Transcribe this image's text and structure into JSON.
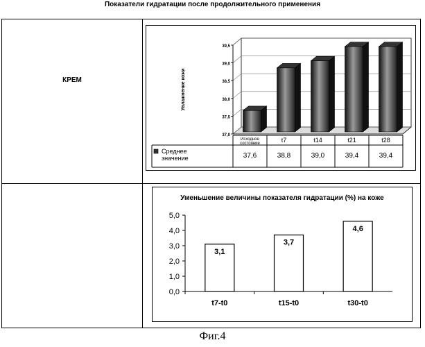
{
  "figure": {
    "title": "Показатели гидратации после продолжительного применения",
    "row_label": "КРЕМ",
    "caption": "Фиг.4"
  },
  "chart_data": [
    {
      "type": "bar",
      "ylabel": "Увлажнение кожи",
      "ylim": [
        37.0,
        39.5
      ],
      "yticks": [
        "37,0",
        "37,5",
        "38,0",
        "38,5",
        "39,0",
        "39,5"
      ],
      "categories": [
        "Исходное состояние",
        "t7",
        "t14",
        "t21",
        "t28"
      ],
      "category_lines": [
        [
          "Исходное",
          "состояние"
        ],
        [
          "t7"
        ],
        [
          "t14"
        ],
        [
          "t21"
        ],
        [
          "t28"
        ]
      ],
      "series": [
        {
          "name": "Среднее значение",
          "name_lines": [
            "Среднее",
            "значение"
          ],
          "values": [
            37.6,
            38.8,
            39.0,
            39.4,
            39.4
          ],
          "labels": [
            "37,6",
            "38,8",
            "39,0",
            "39,4",
            "39,4"
          ]
        }
      ],
      "style": "3d",
      "data_table": true,
      "grid": true
    },
    {
      "type": "bar",
      "title": "Уменьшение величины показателя гидратации (%) на коже",
      "categories": [
        "t7-t0",
        "t15-t0",
        "t30-t0"
      ],
      "values": [
        3.1,
        3.7,
        4.6
      ],
      "labels": [
        "3,1",
        "3,7",
        "4,6"
      ],
      "ylim": [
        0,
        5
      ],
      "yticks": [
        "0,0",
        "1,0",
        "2,0",
        "3,0",
        "4,0",
        "5,0"
      ],
      "grid": false
    }
  ]
}
